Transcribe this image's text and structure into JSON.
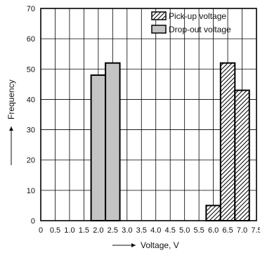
{
  "chart_data": {
    "type": "bar",
    "xlabel": "Voltage, V",
    "ylabel": "Frequency",
    "xlim": [
      0,
      7.5
    ],
    "ylim": [
      0,
      70
    ],
    "x_ticks": [
      "0",
      "0.5",
      "1.0",
      "1.5",
      "2.0",
      "2.5",
      "3.0",
      "3.5",
      "4.0",
      "4.5",
      "5.0",
      "5.5",
      "6.0",
      "6.5",
      "7.0",
      "7.5"
    ],
    "y_ticks": [
      "0",
      "10",
      "20",
      "30",
      "40",
      "50",
      "60",
      "70"
    ],
    "grid": true,
    "legend_position": "top-right",
    "series": [
      {
        "name": "Pick-up voltage",
        "fill": "hatched",
        "color": "#000000",
        "bins": [
          {
            "x0": 5.75,
            "x1": 6.25,
            "value": 5
          },
          {
            "x0": 6.25,
            "x1": 6.75,
            "value": 52
          },
          {
            "x0": 6.75,
            "x1": 7.25,
            "value": 43
          }
        ]
      },
      {
        "name": "Drop-out voltage",
        "fill": "solid",
        "color": "#c4c4c4",
        "bins": [
          {
            "x0": 1.75,
            "x1": 2.25,
            "value": 48
          },
          {
            "x0": 2.25,
            "x1": 2.75,
            "value": 52
          }
        ]
      }
    ]
  }
}
